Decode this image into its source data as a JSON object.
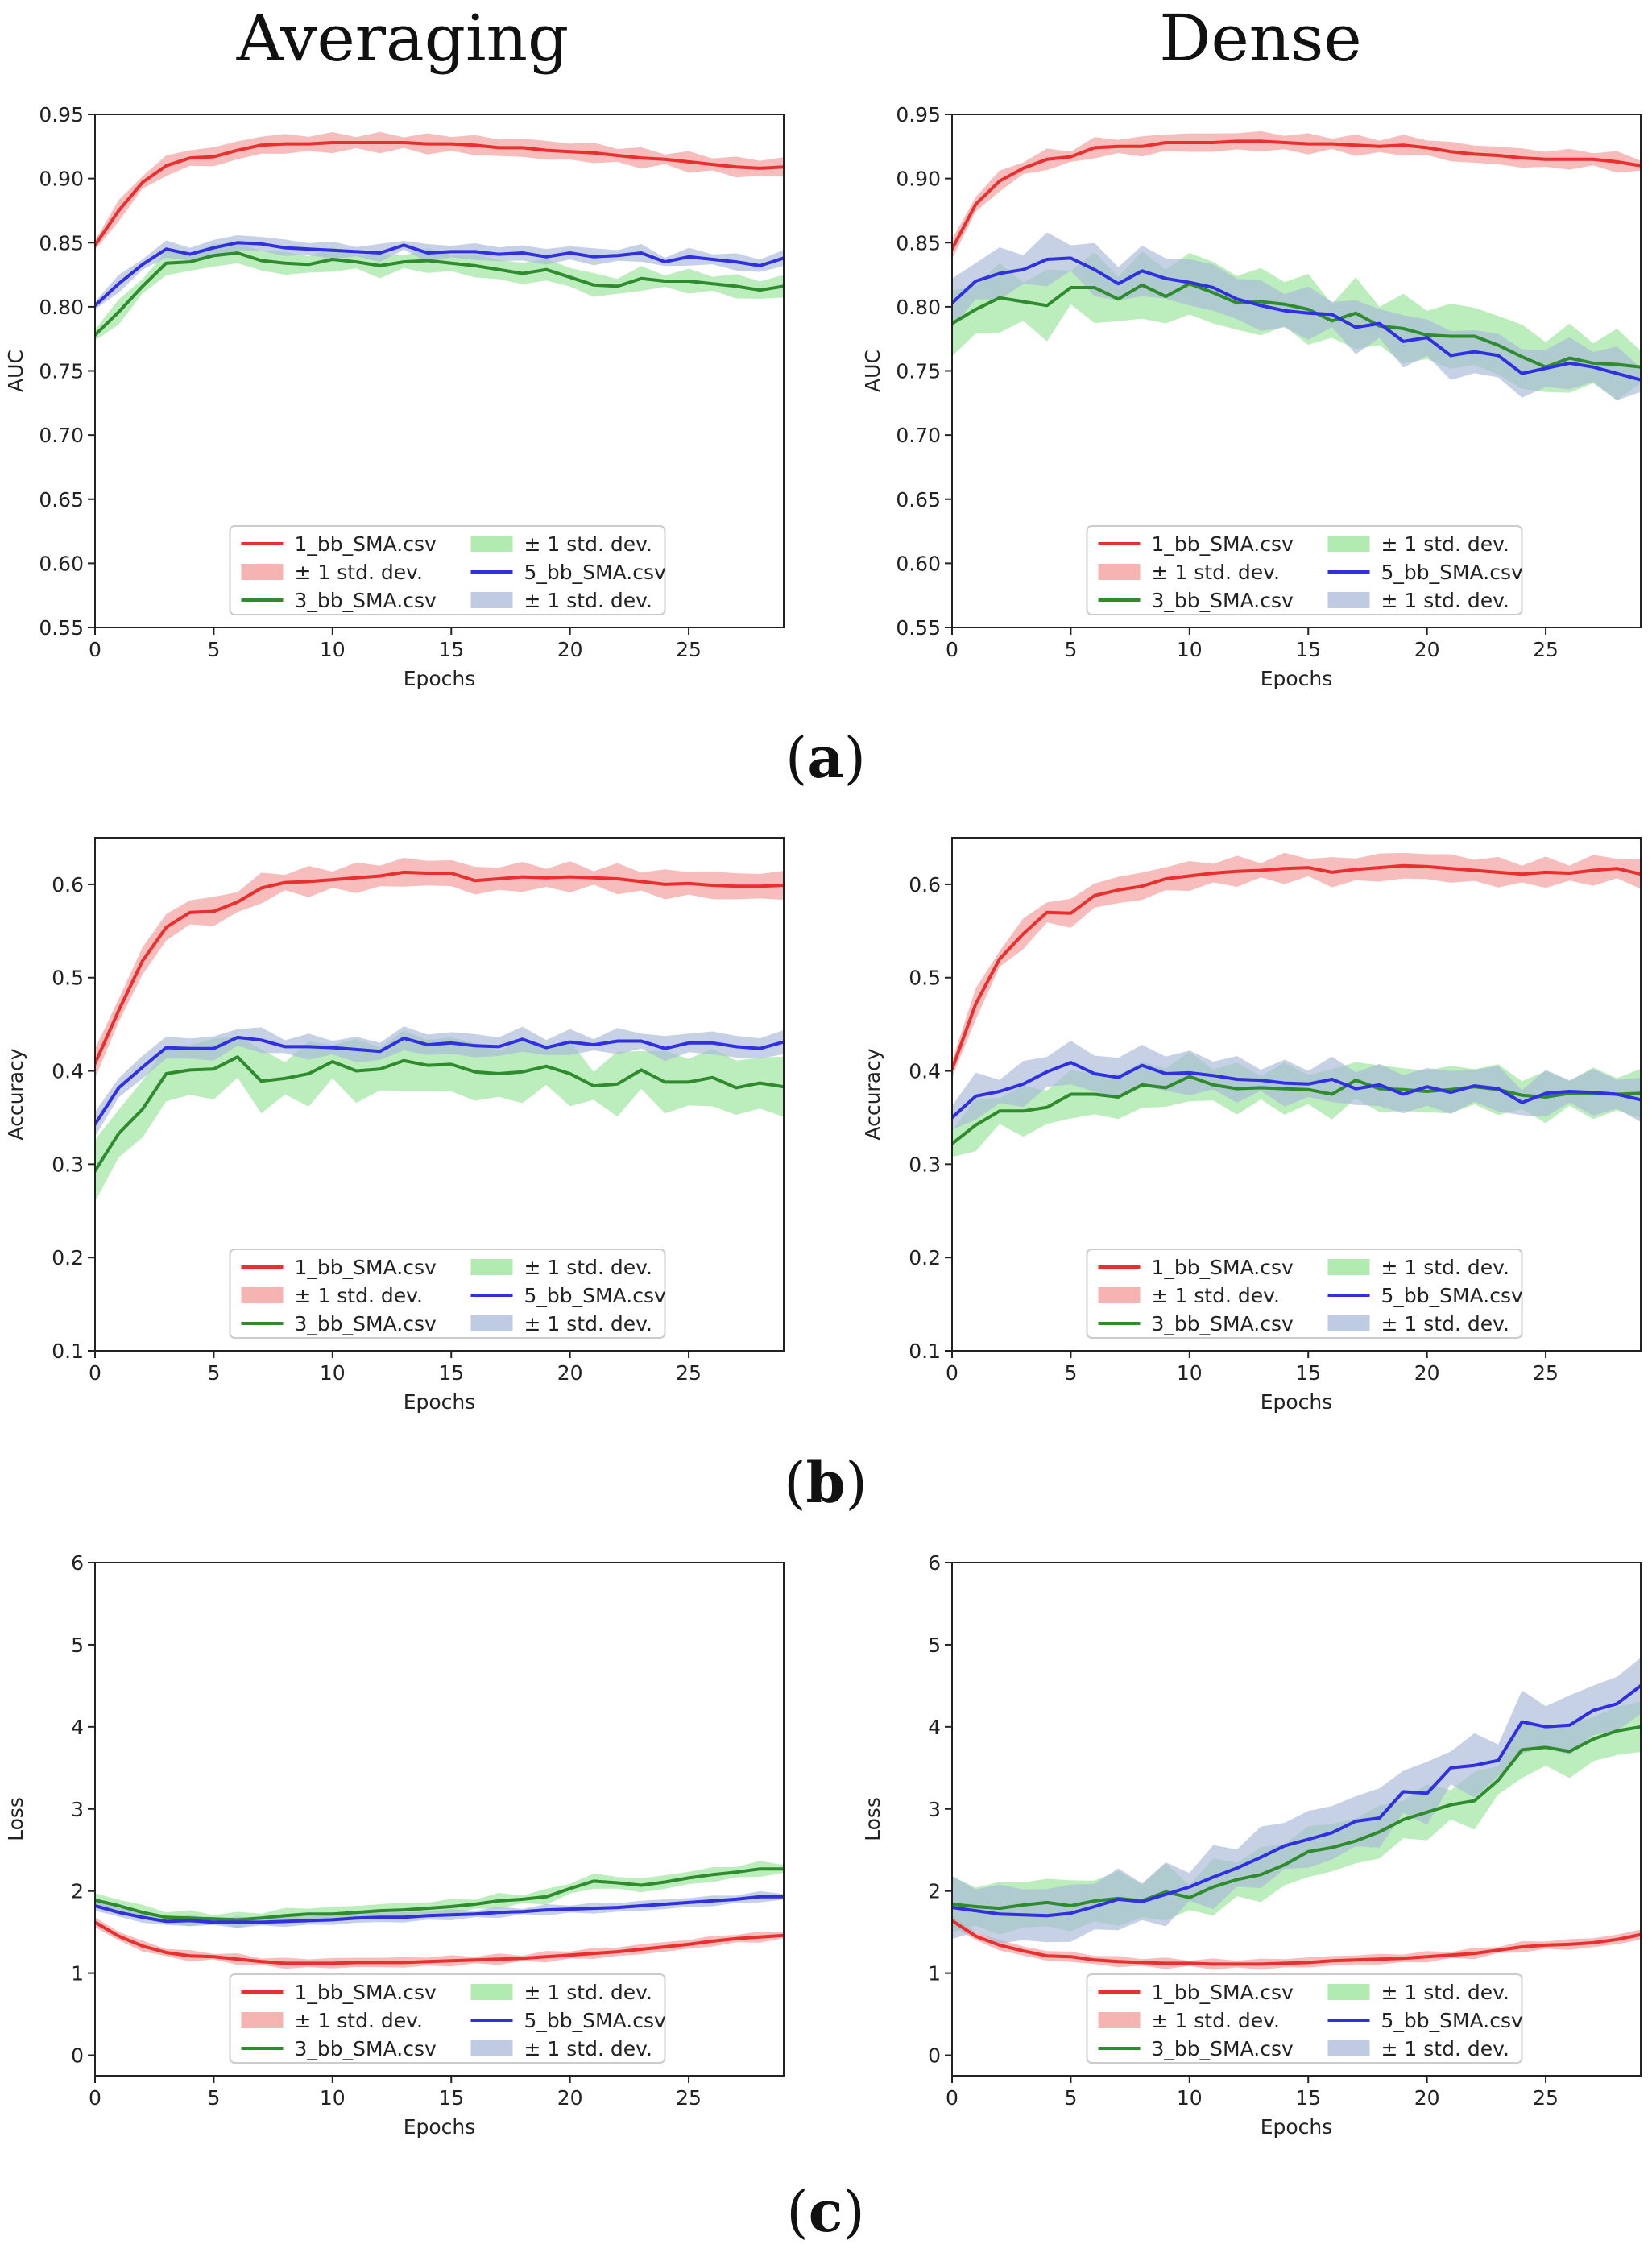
{
  "titles": {
    "left": "Averaging",
    "right": "Dense"
  },
  "panel_labels": [
    "a",
    "b",
    "c"
  ],
  "colors": {
    "red": "#e8302f",
    "green": "#2e8b2e",
    "blue": "#3030e0",
    "red_band": "#f19a98",
    "green_band": "#98e498",
    "blue_band": "#a9b9d8"
  },
  "legend": {
    "entries": [
      "1_bb_SMA.csv",
      "± 1 std. dev.",
      "3_bb_SMA.csv",
      "± 1 std. dev.",
      "5_bb_SMA.csv",
      "± 1 std. dev."
    ]
  },
  "chart_data": [
    {
      "id": "auc_averaging",
      "type": "line",
      "row": 0,
      "col": 0,
      "xlabel": "Epochs",
      "ylabel": "AUC",
      "xlim": [
        0,
        29
      ],
      "ylim": [
        0.55,
        0.95
      ],
      "xticks": [
        0,
        5,
        10,
        15,
        20,
        25
      ],
      "yticks": [
        0.55,
        0.6,
        0.65,
        0.7,
        0.75,
        0.8,
        0.85,
        0.9,
        0.95
      ],
      "ytick_labels": [
        "0.55",
        "0.60",
        "0.65",
        "0.70",
        "0.75",
        "0.80",
        "0.85",
        "0.90",
        "0.95"
      ],
      "series": [
        {
          "name": "1_bb_SMA.csv",
          "color": "red",
          "std": 0.006,
          "values": [
            0.848,
            0.875,
            0.897,
            0.91,
            0.916,
            0.917,
            0.922,
            0.926,
            0.927,
            0.927,
            0.928,
            0.928,
            0.928,
            0.928,
            0.927,
            0.927,
            0.926,
            0.924,
            0.924,
            0.922,
            0.921,
            0.92,
            0.918,
            0.916,
            0.915,
            0.913,
            0.911,
            0.909,
            0.908,
            0.909
          ]
        },
        {
          "name": "3_bb_SMA.csv",
          "color": "green",
          "std": 0.007,
          "values": [
            0.778,
            0.796,
            0.816,
            0.834,
            0.835,
            0.84,
            0.842,
            0.836,
            0.834,
            0.833,
            0.837,
            0.835,
            0.832,
            0.835,
            0.836,
            0.834,
            0.832,
            0.829,
            0.826,
            0.829,
            0.823,
            0.817,
            0.816,
            0.822,
            0.82,
            0.82,
            0.818,
            0.816,
            0.813,
            0.816
          ]
        },
        {
          "name": "5_bb_SMA.csv",
          "color": "blue",
          "std": 0.005,
          "values": [
            0.801,
            0.818,
            0.833,
            0.845,
            0.841,
            0.846,
            0.85,
            0.849,
            0.846,
            0.845,
            0.844,
            0.843,
            0.842,
            0.848,
            0.842,
            0.843,
            0.843,
            0.841,
            0.842,
            0.839,
            0.842,
            0.839,
            0.84,
            0.842,
            0.835,
            0.839,
            0.837,
            0.835,
            0.832,
            0.838
          ]
        }
      ]
    },
    {
      "id": "auc_dense",
      "type": "line",
      "row": 0,
      "col": 1,
      "xlabel": "Epochs",
      "ylabel": "AUC",
      "xlim": [
        0,
        29
      ],
      "ylim": [
        0.55,
        0.95
      ],
      "xticks": [
        0,
        5,
        10,
        15,
        20,
        25
      ],
      "yticks": [
        0.55,
        0.6,
        0.65,
        0.7,
        0.75,
        0.8,
        0.85,
        0.9,
        0.95
      ],
      "ytick_labels": [
        "0.55",
        "0.60",
        "0.65",
        "0.70",
        "0.75",
        "0.80",
        "0.85",
        "0.90",
        "0.95"
      ],
      "series": [
        {
          "name": "1_bb_SMA.csv",
          "color": "red",
          "std": 0.006,
          "values": [
            0.845,
            0.88,
            0.898,
            0.908,
            0.915,
            0.917,
            0.924,
            0.925,
            0.925,
            0.928,
            0.928,
            0.928,
            0.929,
            0.929,
            0.928,
            0.927,
            0.927,
            0.926,
            0.925,
            0.926,
            0.924,
            0.921,
            0.919,
            0.918,
            0.916,
            0.915,
            0.915,
            0.915,
            0.913,
            0.91
          ]
        },
        {
          "name": "3_bb_SMA.csv",
          "color": "green",
          "std": 0.02,
          "values": [
            0.787,
            0.798,
            0.807,
            0.804,
            0.801,
            0.815,
            0.815,
            0.806,
            0.817,
            0.808,
            0.818,
            0.811,
            0.803,
            0.804,
            0.802,
            0.798,
            0.789,
            0.795,
            0.785,
            0.783,
            0.778,
            0.777,
            0.777,
            0.77,
            0.761,
            0.753,
            0.76,
            0.756,
            0.755,
            0.753
          ]
        },
        {
          "name": "5_bb_SMA.csv",
          "color": "blue",
          "std": 0.015,
          "values": [
            0.803,
            0.82,
            0.826,
            0.829,
            0.837,
            0.838,
            0.829,
            0.818,
            0.828,
            0.822,
            0.819,
            0.815,
            0.806,
            0.801,
            0.797,
            0.795,
            0.794,
            0.784,
            0.787,
            0.773,
            0.776,
            0.762,
            0.765,
            0.762,
            0.748,
            0.752,
            0.756,
            0.753,
            0.748,
            0.743
          ]
        }
      ]
    },
    {
      "id": "acc_averaging",
      "type": "line",
      "row": 1,
      "col": 0,
      "xlabel": "Epochs",
      "ylabel": "Accuracy",
      "xlim": [
        0,
        29
      ],
      "ylim": [
        0.1,
        0.65
      ],
      "xticks": [
        0,
        5,
        10,
        15,
        20,
        25
      ],
      "yticks": [
        0.1,
        0.2,
        0.3,
        0.4,
        0.5,
        0.6
      ],
      "ytick_labels": [
        "0.1",
        "0.2",
        "0.3",
        "0.4",
        "0.5",
        "0.6"
      ],
      "series": [
        {
          "name": "1_bb_SMA.csv",
          "color": "red",
          "std": 0.012,
          "values": [
            0.408,
            0.465,
            0.518,
            0.554,
            0.57,
            0.571,
            0.581,
            0.596,
            0.602,
            0.603,
            0.605,
            0.607,
            0.609,
            0.613,
            0.612,
            0.612,
            0.604,
            0.606,
            0.608,
            0.607,
            0.608,
            0.607,
            0.606,
            0.603,
            0.6,
            0.601,
            0.599,
            0.598,
            0.598,
            0.599
          ]
        },
        {
          "name": "3_bb_SMA.csv",
          "color": "green",
          "std": 0.025,
          "values": [
            0.293,
            0.333,
            0.359,
            0.397,
            0.401,
            0.402,
            0.415,
            0.389,
            0.392,
            0.397,
            0.41,
            0.4,
            0.402,
            0.411,
            0.406,
            0.407,
            0.399,
            0.397,
            0.399,
            0.405,
            0.397,
            0.384,
            0.386,
            0.401,
            0.388,
            0.388,
            0.393,
            0.382,
            0.387,
            0.383
          ]
        },
        {
          "name": "5_bb_SMA.csv",
          "color": "blue",
          "std": 0.01,
          "values": [
            0.343,
            0.382,
            0.404,
            0.425,
            0.424,
            0.424,
            0.436,
            0.433,
            0.426,
            0.426,
            0.425,
            0.423,
            0.421,
            0.435,
            0.428,
            0.43,
            0.427,
            0.426,
            0.434,
            0.425,
            0.431,
            0.428,
            0.432,
            0.432,
            0.424,
            0.43,
            0.43,
            0.426,
            0.424,
            0.431
          ]
        }
      ]
    },
    {
      "id": "acc_dense",
      "type": "line",
      "row": 1,
      "col": 1,
      "xlabel": "Epochs",
      "ylabel": "Accuracy",
      "xlim": [
        0,
        29
      ],
      "ylim": [
        0.1,
        0.65
      ],
      "xticks": [
        0,
        5,
        10,
        15,
        20,
        25
      ],
      "yticks": [
        0.1,
        0.2,
        0.3,
        0.4,
        0.5,
        0.6
      ],
      "ytick_labels": [
        "0.1",
        "0.2",
        "0.3",
        "0.4",
        "0.5",
        "0.6"
      ],
      "series": [
        {
          "name": "1_bb_SMA.csv",
          "color": "red",
          "std": 0.012,
          "values": [
            0.402,
            0.472,
            0.52,
            0.547,
            0.57,
            0.569,
            0.588,
            0.594,
            0.598,
            0.606,
            0.609,
            0.612,
            0.614,
            0.615,
            0.617,
            0.618,
            0.613,
            0.616,
            0.618,
            0.62,
            0.619,
            0.617,
            0.615,
            0.613,
            0.611,
            0.613,
            0.612,
            0.615,
            0.617,
            0.611
          ]
        },
        {
          "name": "3_bb_SMA.csv",
          "color": "green",
          "std": 0.02,
          "values": [
            0.322,
            0.342,
            0.357,
            0.357,
            0.361,
            0.375,
            0.375,
            0.372,
            0.385,
            0.382,
            0.394,
            0.385,
            0.381,
            0.382,
            0.381,
            0.38,
            0.375,
            0.39,
            0.381,
            0.38,
            0.378,
            0.38,
            0.383,
            0.38,
            0.374,
            0.372,
            0.376,
            0.376,
            0.375,
            0.376
          ]
        },
        {
          "name": "5_bb_SMA.csv",
          "color": "blue",
          "std": 0.018,
          "values": [
            0.35,
            0.373,
            0.378,
            0.386,
            0.399,
            0.409,
            0.397,
            0.393,
            0.406,
            0.397,
            0.398,
            0.395,
            0.391,
            0.39,
            0.387,
            0.386,
            0.391,
            0.381,
            0.385,
            0.375,
            0.383,
            0.377,
            0.384,
            0.381,
            0.366,
            0.376,
            0.378,
            0.377,
            0.375,
            0.369
          ]
        }
      ]
    },
    {
      "id": "loss_averaging",
      "type": "line",
      "row": 2,
      "col": 0,
      "xlabel": "Epochs",
      "ylabel": "Loss",
      "xlim": [
        0,
        29
      ],
      "ylim": [
        -0.25,
        6
      ],
      "xticks": [
        0,
        5,
        10,
        15,
        20,
        25
      ],
      "yticks": [
        0,
        1,
        2,
        3,
        4,
        5,
        6
      ],
      "ytick_labels": [
        "0",
        "1",
        "2",
        "3",
        "4",
        "5",
        "6"
      ],
      "series": [
        {
          "name": "1_bb_SMA.csv",
          "color": "red",
          "std": 0.05,
          "values": [
            1.62,
            1.45,
            1.33,
            1.25,
            1.21,
            1.2,
            1.17,
            1.14,
            1.12,
            1.12,
            1.12,
            1.13,
            1.13,
            1.13,
            1.14,
            1.15,
            1.16,
            1.17,
            1.18,
            1.2,
            1.22,
            1.24,
            1.26,
            1.29,
            1.32,
            1.35,
            1.39,
            1.42,
            1.44,
            1.46
          ]
        },
        {
          "name": "3_bb_SMA.csv",
          "color": "green",
          "std": 0.07,
          "values": [
            1.89,
            1.82,
            1.74,
            1.68,
            1.67,
            1.66,
            1.65,
            1.67,
            1.7,
            1.72,
            1.72,
            1.74,
            1.76,
            1.77,
            1.79,
            1.81,
            1.84,
            1.88,
            1.9,
            1.93,
            2.03,
            2.12,
            2.1,
            2.07,
            2.11,
            2.16,
            2.2,
            2.23,
            2.27,
            2.27
          ]
        },
        {
          "name": "5_bb_SMA.csv",
          "color": "blue",
          "std": 0.05,
          "values": [
            1.82,
            1.74,
            1.68,
            1.63,
            1.64,
            1.62,
            1.62,
            1.62,
            1.63,
            1.64,
            1.65,
            1.67,
            1.68,
            1.68,
            1.7,
            1.71,
            1.72,
            1.74,
            1.75,
            1.77,
            1.78,
            1.79,
            1.8,
            1.82,
            1.84,
            1.86,
            1.88,
            1.9,
            1.93,
            1.93
          ]
        }
      ]
    },
    {
      "id": "loss_dense",
      "type": "line",
      "row": 2,
      "col": 1,
      "xlabel": "Epochs",
      "ylabel": "Loss",
      "xlim": [
        0,
        29
      ],
      "ylim": [
        -0.25,
        6
      ],
      "xticks": [
        0,
        5,
        10,
        15,
        20,
        25
      ],
      "yticks": [
        0,
        1,
        2,
        3,
        4,
        5,
        6
      ],
      "ytick_labels": [
        "0",
        "1",
        "2",
        "3",
        "4",
        "5",
        "6"
      ],
      "series": [
        {
          "name": "1_bb_SMA.csv",
          "color": "red",
          "std": 0.05,
          "values": [
            1.64,
            1.45,
            1.34,
            1.27,
            1.21,
            1.2,
            1.16,
            1.14,
            1.13,
            1.12,
            1.12,
            1.11,
            1.11,
            1.11,
            1.12,
            1.13,
            1.15,
            1.16,
            1.17,
            1.18,
            1.2,
            1.22,
            1.24,
            1.28,
            1.32,
            1.34,
            1.35,
            1.37,
            1.41,
            1.47
          ]
        },
        {
          "name": "3_bb_SMA.csv",
          "color": "green",
          "std": 0.25,
          "values": [
            1.84,
            1.81,
            1.79,
            1.83,
            1.86,
            1.82,
            1.88,
            1.91,
            1.88,
            1.99,
            1.92,
            2.05,
            2.14,
            2.2,
            2.32,
            2.48,
            2.53,
            2.61,
            2.72,
            2.87,
            2.96,
            3.05,
            3.1,
            3.35,
            3.72,
            3.75,
            3.7,
            3.85,
            3.95,
            4.0
          ]
        },
        {
          "name": "5_bb_SMA.csv",
          "color": "blue",
          "std": 0.28,
          "values": [
            1.8,
            1.76,
            1.72,
            1.71,
            1.7,
            1.73,
            1.81,
            1.9,
            1.87,
            1.96,
            2.05,
            2.17,
            2.28,
            2.41,
            2.55,
            2.63,
            2.71,
            2.85,
            2.89,
            3.21,
            3.19,
            3.5,
            3.53,
            3.59,
            4.06,
            4.0,
            4.02,
            4.2,
            4.28,
            4.5
          ]
        }
      ]
    }
  ]
}
